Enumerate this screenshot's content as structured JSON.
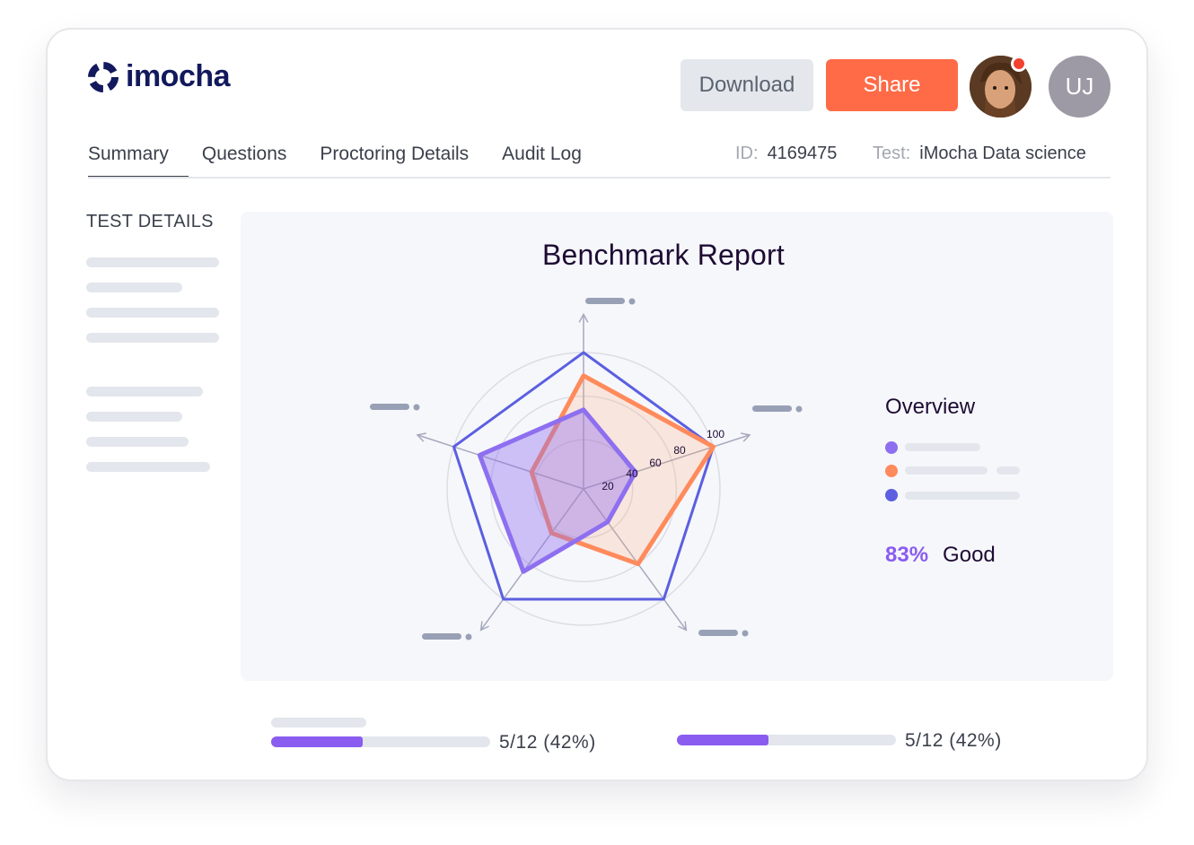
{
  "brand": {
    "name": "imocha",
    "color": "#12195c"
  },
  "header": {
    "download_label": "Download",
    "share_label": "Share",
    "user_initials": "UJ"
  },
  "tabs": [
    {
      "label": "Summary",
      "active": true
    },
    {
      "label": "Questions",
      "active": false
    },
    {
      "label": "Proctoring Details",
      "active": false
    },
    {
      "label": "Audit Log",
      "active": false
    }
  ],
  "meta": {
    "id_key": "ID:",
    "id_value": "4169475",
    "test_key": "Test:",
    "test_value": "iMocha Data science"
  },
  "sidebar": {
    "title": "TEST DETAILS"
  },
  "chart_data": {
    "type": "radar",
    "title": "Benchmark Report",
    "scale_ticks": [
      "20",
      "40",
      "60",
      "80",
      "100"
    ],
    "axes": 5,
    "series": [
      {
        "color": "#5b5fe0",
        "values": [
          100,
          100,
          100,
          100,
          100
        ]
      },
      {
        "color": "#ff8a5b",
        "values": [
          83,
          100,
          68,
          40,
          40
        ]
      },
      {
        "color": "#8e6ff0",
        "values": [
          58,
          40,
          30,
          75,
          80
        ]
      }
    ]
  },
  "overview": {
    "title": "Overview",
    "dots": [
      "#8e6ff0",
      "#ff8a5b",
      "#5b5fe0"
    ],
    "score_pct": "83%",
    "score_label": "Good"
  },
  "progress": [
    {
      "text": "5/12  (42%)",
      "fraction": 0.42
    },
    {
      "text": "5/12  (42%)",
      "fraction": 0.42
    }
  ],
  "colors": {
    "accent": "#8a5cf0",
    "share": "#ff6b47",
    "notification": "#f2412f"
  }
}
